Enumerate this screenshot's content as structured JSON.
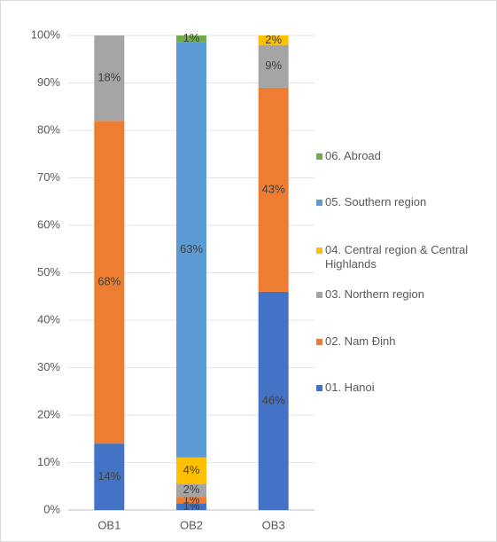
{
  "chart_data": {
    "type": "stacked_percent_bar",
    "categories": [
      "OB1",
      "OB2",
      "OB3"
    ],
    "series": [
      {
        "name": "01. Hanoi",
        "color": "#4472c4",
        "values": [
          14,
          1,
          46
        ],
        "value_labels": [
          "14%",
          "1%",
          "46%"
        ]
      },
      {
        "name": "02. Nam Định",
        "color": "#ed7d31",
        "values": [
          68,
          1,
          43
        ],
        "value_labels": [
          "68%",
          "1%",
          "43%"
        ]
      },
      {
        "name": "03. Northern region",
        "color": "#a5a5a5",
        "values": [
          18,
          2,
          9
        ],
        "value_labels": [
          "18%",
          "2%",
          "9%"
        ]
      },
      {
        "name": "04. Central region & Central Highlands",
        "color": "#ffc000",
        "values": [
          null,
          4,
          2
        ],
        "value_labels": [
          null,
          "4%",
          "2%"
        ]
      },
      {
        "name": "05. Southern region",
        "color": "#5b9bd5",
        "values": [
          null,
          63,
          null
        ],
        "value_labels": [
          null,
          "63%",
          null
        ]
      },
      {
        "name": "06. Abroad",
        "color": "#70ad47",
        "values": [
          null,
          1,
          null
        ],
        "value_labels": [
          null,
          "1%",
          null
        ]
      }
    ],
    "ylim": [
      0,
      100
    ],
    "yticks": [
      {
        "value": 0,
        "label": "0%"
      },
      {
        "value": 10,
        "label": "10%"
      },
      {
        "value": 20,
        "label": "20%"
      },
      {
        "value": 30,
        "label": "30%"
      },
      {
        "value": 40,
        "label": "40%"
      },
      {
        "value": 50,
        "label": "50%"
      },
      {
        "value": 60,
        "label": "60%"
      },
      {
        "value": 70,
        "label": "70%"
      },
      {
        "value": 80,
        "label": "80%"
      },
      {
        "value": 90,
        "label": "90%"
      },
      {
        "value": 100,
        "label": "100%"
      }
    ],
    "grid": true,
    "legend": "right"
  }
}
